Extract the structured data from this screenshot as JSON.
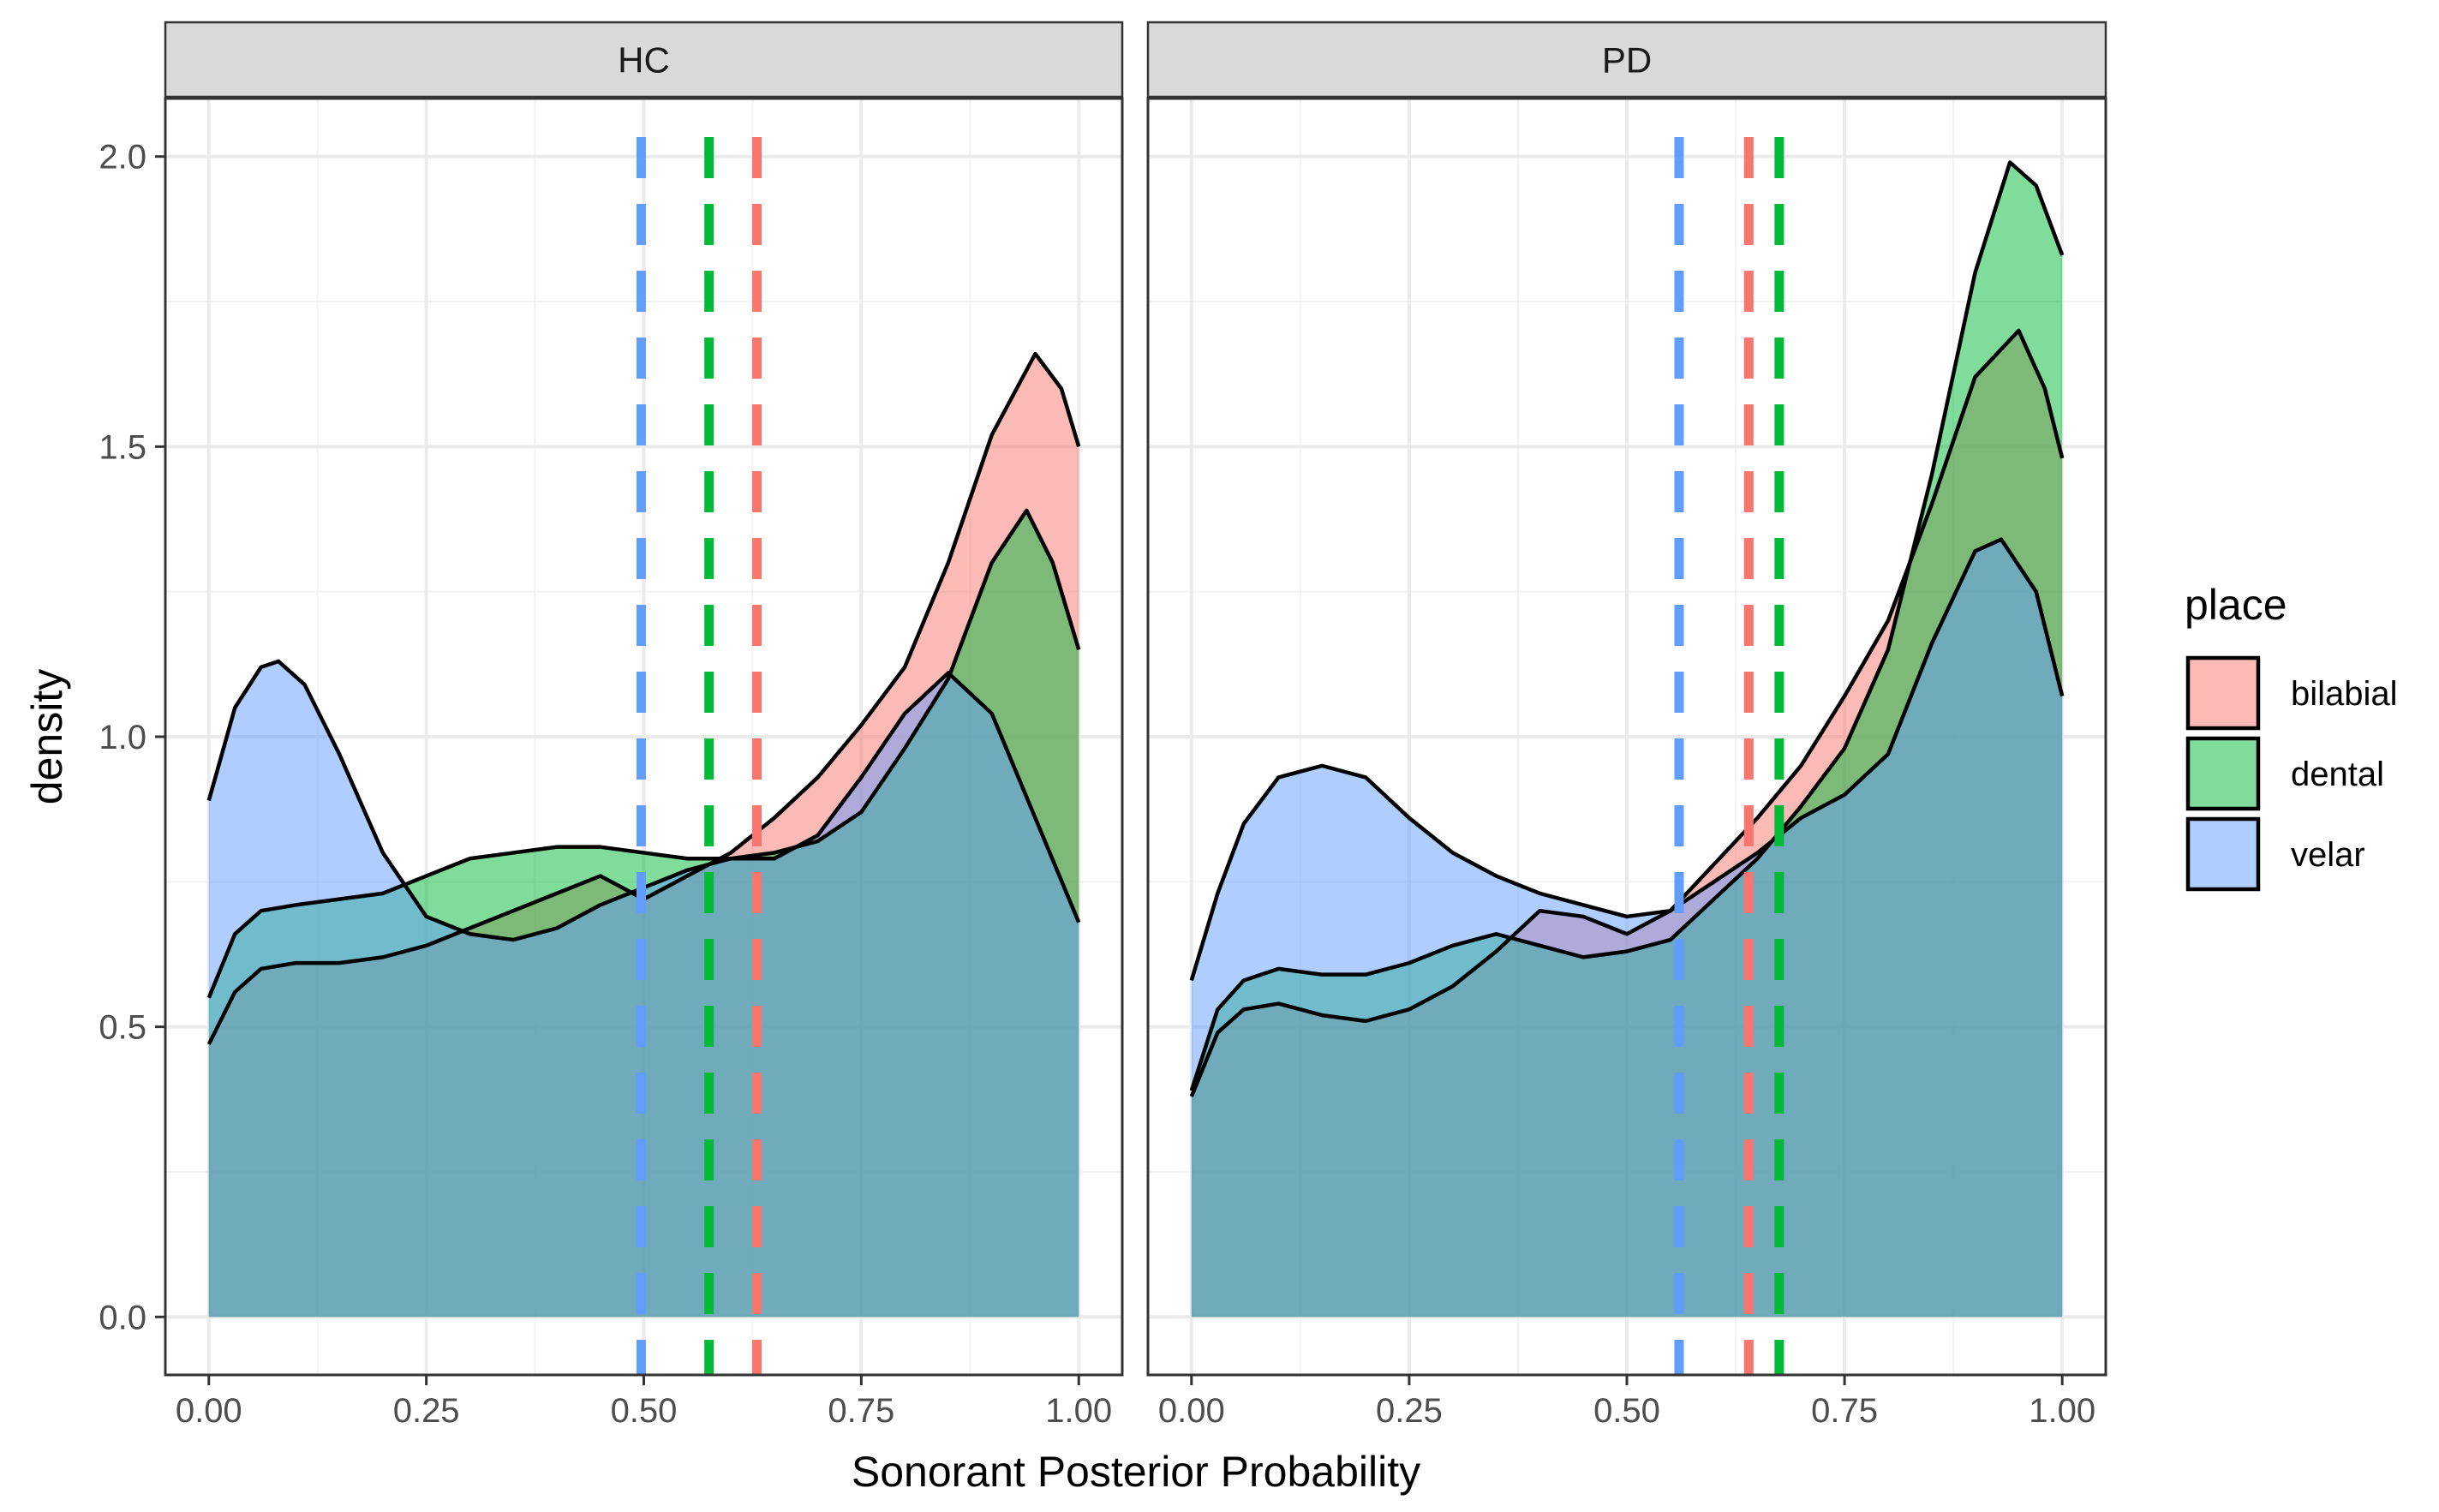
{
  "chart_data": {
    "type": "area",
    "subtype": "density",
    "xlabel": "Sonorant Posterior Probability",
    "ylabel": "density",
    "xlim": [
      -0.05,
      1.05
    ],
    "ylim": [
      -0.1,
      2.1
    ],
    "x_ticks": [
      "0.00",
      "0.25",
      "0.50",
      "0.75",
      "1.00"
    ],
    "y_ticks": [
      "0.0",
      "0.5",
      "1.0",
      "1.5",
      "2.0"
    ],
    "grid": true,
    "legend": {
      "title": "place",
      "position": "right",
      "entries": [
        {
          "label": "bilabial",
          "color": "#F8766D"
        },
        {
          "label": "dental",
          "color": "#00BA38"
        },
        {
          "label": "velar",
          "color": "#619CFF"
        }
      ]
    },
    "panels": [
      {
        "strip": "HC",
        "series": [
          {
            "name": "bilabial",
            "mean": 0.63,
            "points": [
              [
                0.0,
                0.47
              ],
              [
                0.03,
                0.56
              ],
              [
                0.06,
                0.6
              ],
              [
                0.1,
                0.61
              ],
              [
                0.15,
                0.61
              ],
              [
                0.2,
                0.62
              ],
              [
                0.25,
                0.64
              ],
              [
                0.3,
                0.67
              ],
              [
                0.35,
                0.7
              ],
              [
                0.4,
                0.73
              ],
              [
                0.45,
                0.76
              ],
              [
                0.5,
                0.72
              ],
              [
                0.55,
                0.76
              ],
              [
                0.6,
                0.8
              ],
              [
                0.65,
                0.86
              ],
              [
                0.7,
                0.93
              ],
              [
                0.75,
                1.02
              ],
              [
                0.8,
                1.12
              ],
              [
                0.85,
                1.3
              ],
              [
                0.9,
                1.52
              ],
              [
                0.95,
                1.66
              ],
              [
                0.98,
                1.6
              ],
              [
                1.0,
                1.5
              ]
            ]
          },
          {
            "name": "dental",
            "mean": 0.575,
            "points": [
              [
                0.0,
                0.55
              ],
              [
                0.03,
                0.66
              ],
              [
                0.06,
                0.7
              ],
              [
                0.1,
                0.71
              ],
              [
                0.15,
                0.72
              ],
              [
                0.2,
                0.73
              ],
              [
                0.25,
                0.76
              ],
              [
                0.3,
                0.79
              ],
              [
                0.35,
                0.8
              ],
              [
                0.4,
                0.81
              ],
              [
                0.45,
                0.81
              ],
              [
                0.5,
                0.8
              ],
              [
                0.55,
                0.79
              ],
              [
                0.6,
                0.79
              ],
              [
                0.65,
                0.8
              ],
              [
                0.7,
                0.82
              ],
              [
                0.75,
                0.87
              ],
              [
                0.8,
                0.98
              ],
              [
                0.85,
                1.1
              ],
              [
                0.9,
                1.3
              ],
              [
                0.94,
                1.39
              ],
              [
                0.97,
                1.3
              ],
              [
                1.0,
                1.15
              ]
            ]
          },
          {
            "name": "velar",
            "mean": 0.497,
            "points": [
              [
                0.0,
                0.89
              ],
              [
                0.03,
                1.05
              ],
              [
                0.06,
                1.12
              ],
              [
                0.08,
                1.13
              ],
              [
                0.11,
                1.09
              ],
              [
                0.15,
                0.97
              ],
              [
                0.2,
                0.8
              ],
              [
                0.25,
                0.69
              ],
              [
                0.3,
                0.66
              ],
              [
                0.35,
                0.65
              ],
              [
                0.4,
                0.67
              ],
              [
                0.45,
                0.71
              ],
              [
                0.5,
                0.74
              ],
              [
                0.55,
                0.77
              ],
              [
                0.6,
                0.79
              ],
              [
                0.65,
                0.79
              ],
              [
                0.7,
                0.83
              ],
              [
                0.75,
                0.93
              ],
              [
                0.8,
                1.04
              ],
              [
                0.85,
                1.11
              ],
              [
                0.9,
                1.04
              ],
              [
                0.95,
                0.86
              ],
              [
                1.0,
                0.68
              ]
            ]
          }
        ]
      },
      {
        "strip": "PD",
        "series": [
          {
            "name": "bilabial",
            "mean": 0.64,
            "points": [
              [
                0.0,
                0.38
              ],
              [
                0.03,
                0.49
              ],
              [
                0.06,
                0.53
              ],
              [
                0.1,
                0.54
              ],
              [
                0.15,
                0.52
              ],
              [
                0.2,
                0.51
              ],
              [
                0.25,
                0.53
              ],
              [
                0.3,
                0.57
              ],
              [
                0.35,
                0.63
              ],
              [
                0.4,
                0.7
              ],
              [
                0.45,
                0.69
              ],
              [
                0.5,
                0.66
              ],
              [
                0.55,
                0.7
              ],
              [
                0.6,
                0.78
              ],
              [
                0.65,
                0.86
              ],
              [
                0.7,
                0.95
              ],
              [
                0.75,
                1.07
              ],
              [
                0.8,
                1.2
              ],
              [
                0.85,
                1.4
              ],
              [
                0.9,
                1.62
              ],
              [
                0.95,
                1.7
              ],
              [
                0.98,
                1.6
              ],
              [
                1.0,
                1.48
              ]
            ]
          },
          {
            "name": "dental",
            "mean": 0.675,
            "points": [
              [
                0.0,
                0.39
              ],
              [
                0.03,
                0.53
              ],
              [
                0.06,
                0.58
              ],
              [
                0.1,
                0.6
              ],
              [
                0.15,
                0.59
              ],
              [
                0.2,
                0.59
              ],
              [
                0.25,
                0.61
              ],
              [
                0.3,
                0.64
              ],
              [
                0.35,
                0.66
              ],
              [
                0.4,
                0.64
              ],
              [
                0.45,
                0.62
              ],
              [
                0.5,
                0.63
              ],
              [
                0.55,
                0.65
              ],
              [
                0.6,
                0.72
              ],
              [
                0.65,
                0.79
              ],
              [
                0.7,
                0.88
              ],
              [
                0.75,
                0.98
              ],
              [
                0.8,
                1.15
              ],
              [
                0.85,
                1.45
              ],
              [
                0.9,
                1.8
              ],
              [
                0.94,
                1.99
              ],
              [
                0.97,
                1.95
              ],
              [
                1.0,
                1.83
              ]
            ]
          },
          {
            "name": "velar",
            "mean": 0.56,
            "points": [
              [
                0.0,
                0.58
              ],
              [
                0.03,
                0.73
              ],
              [
                0.06,
                0.85
              ],
              [
                0.1,
                0.93
              ],
              [
                0.15,
                0.95
              ],
              [
                0.2,
                0.93
              ],
              [
                0.25,
                0.86
              ],
              [
                0.3,
                0.8
              ],
              [
                0.35,
                0.76
              ],
              [
                0.4,
                0.73
              ],
              [
                0.45,
                0.71
              ],
              [
                0.5,
                0.69
              ],
              [
                0.55,
                0.7
              ],
              [
                0.6,
                0.75
              ],
              [
                0.65,
                0.8
              ],
              [
                0.7,
                0.86
              ],
              [
                0.75,
                0.9
              ],
              [
                0.8,
                0.97
              ],
              [
                0.85,
                1.16
              ],
              [
                0.9,
                1.32
              ],
              [
                0.93,
                1.34
              ],
              [
                0.97,
                1.25
              ],
              [
                1.0,
                1.07
              ]
            ]
          }
        ]
      }
    ]
  }
}
